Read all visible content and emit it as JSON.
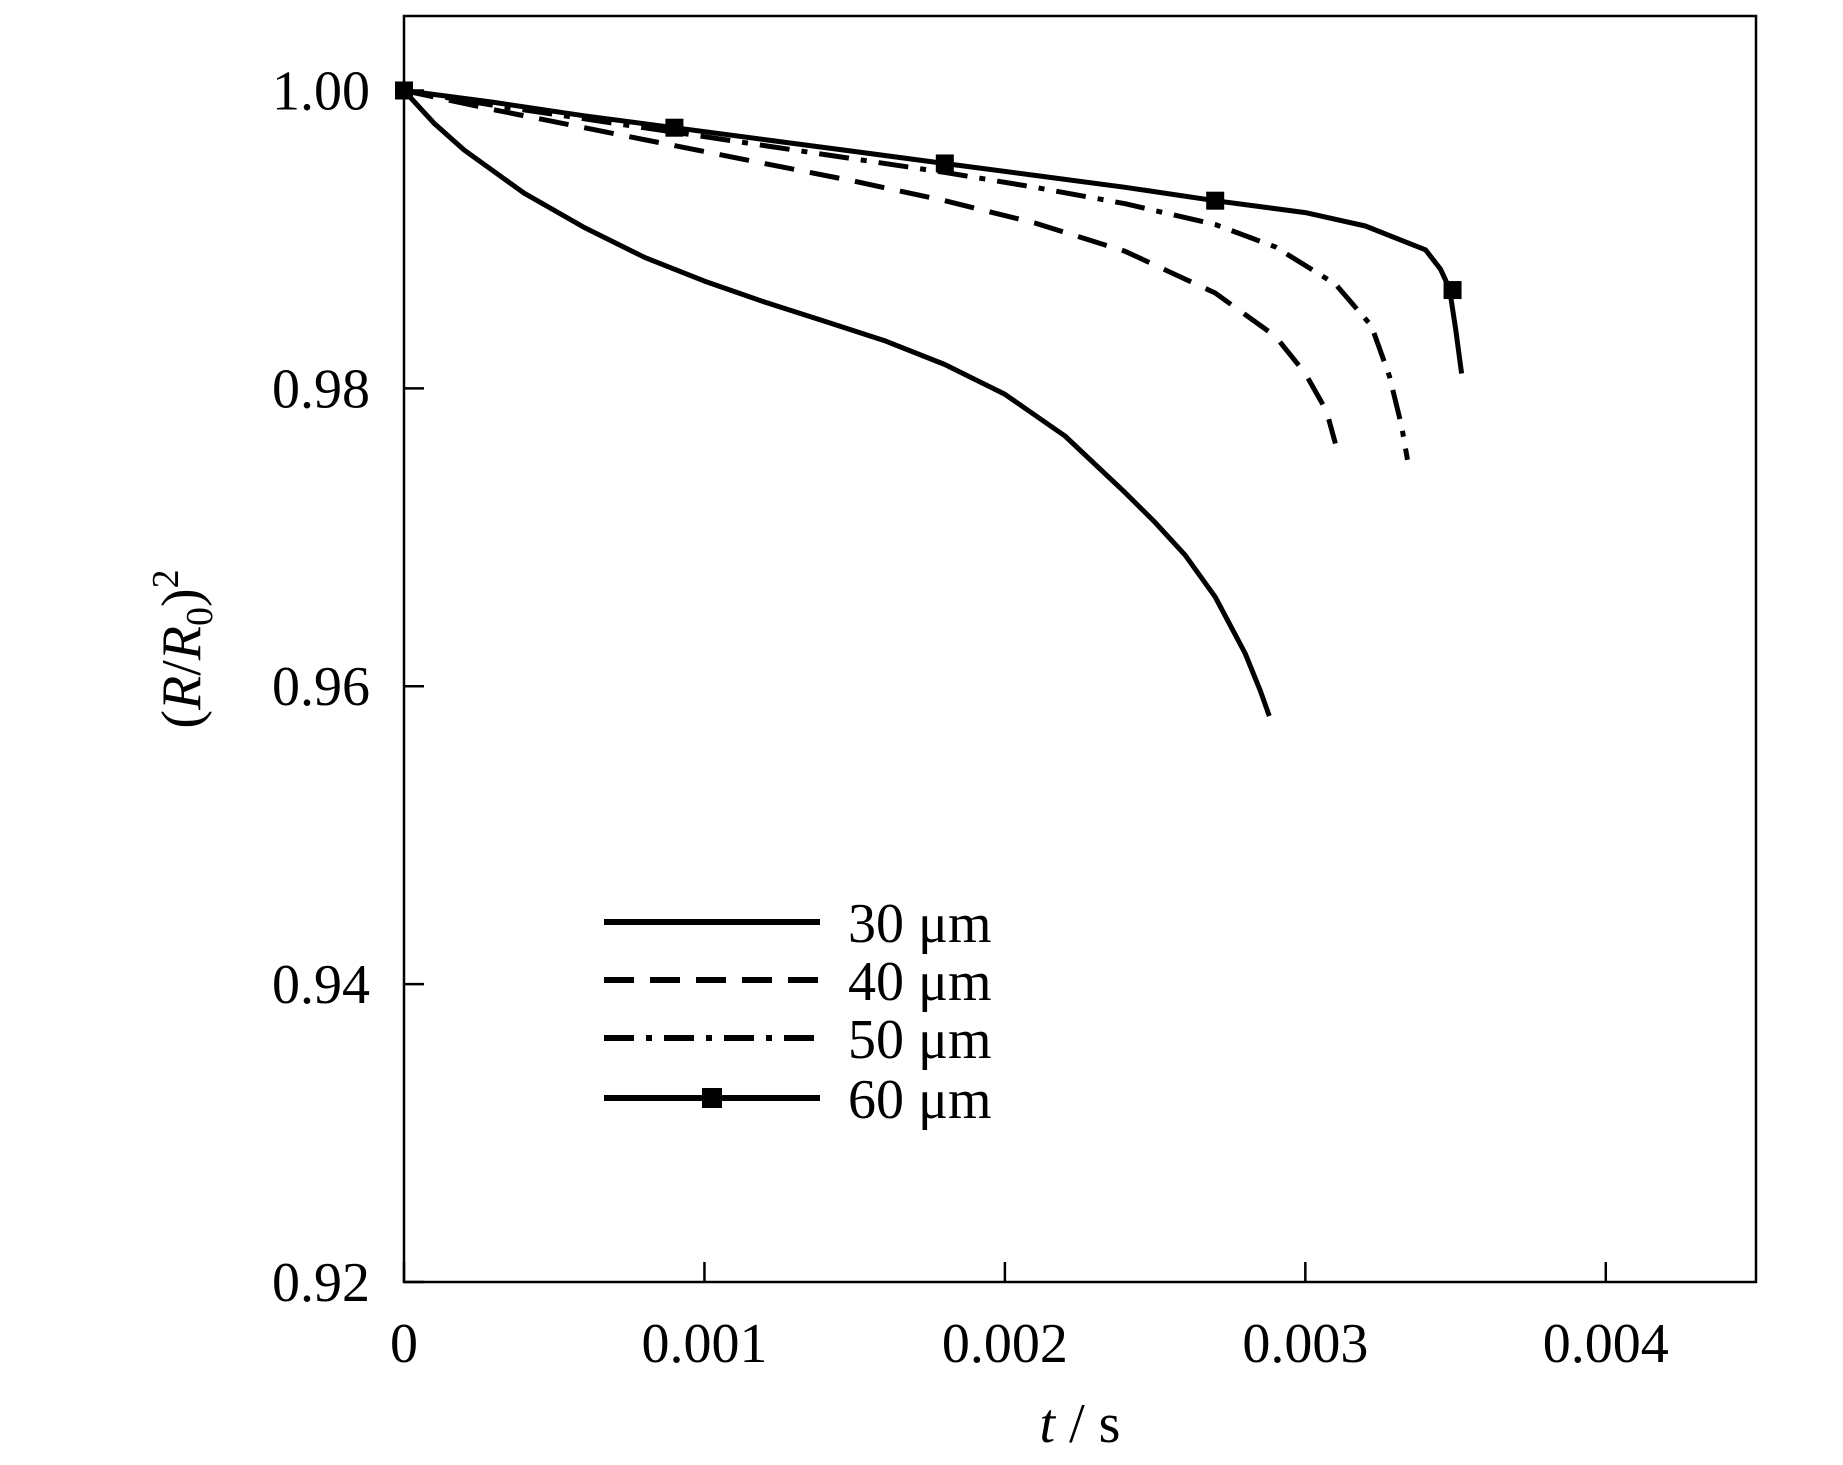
{
  "chart_data": {
    "type": "line",
    "xlabel": "t / s",
    "xlabel_parts": {
      "var": "t",
      "unit": " / s"
    },
    "ylabel": "(R/R0)^2",
    "ylabel_parts": {
      "open": "(",
      "r": "R",
      "slash": "/",
      "r0": "R",
      "sub": "0",
      "close": ")",
      "sup": "2"
    },
    "xlim": [
      0,
      0.0045
    ],
    "ylim": [
      0.92,
      1.005
    ],
    "xticks": [
      0,
      0.001,
      0.002,
      0.003,
      0.004
    ],
    "xtick_labels": [
      "0",
      "0.001",
      "0.002",
      "0.003",
      "0.004"
    ],
    "yticks": [
      0.92,
      0.94,
      0.96,
      0.98,
      1.0
    ],
    "ytick_labels": [
      "0.92",
      "0.94",
      "0.96",
      "0.98",
      "1.00"
    ],
    "grid": false,
    "legend_position": "lower-left",
    "series": [
      {
        "name": "30 μm",
        "style": "solid",
        "marker": "none",
        "color": "#000000",
        "points": [
          [
            0,
            1.0
          ],
          [
            0.0001,
            0.9978
          ],
          [
            0.0002,
            0.996
          ],
          [
            0.0004,
            0.9931
          ],
          [
            0.0006,
            0.9908
          ],
          [
            0.0008,
            0.9888
          ],
          [
            0.001,
            0.9872
          ],
          [
            0.0012,
            0.9858
          ],
          [
            0.0014,
            0.9845
          ],
          [
            0.0016,
            0.9832
          ],
          [
            0.0018,
            0.9816
          ],
          [
            0.002,
            0.9796
          ],
          [
            0.0022,
            0.9768
          ],
          [
            0.0024,
            0.973
          ],
          [
            0.0025,
            0.971
          ],
          [
            0.0026,
            0.9688
          ],
          [
            0.0027,
            0.966
          ],
          [
            0.0028,
            0.9622
          ],
          [
            0.00285,
            0.9597
          ],
          [
            0.00288,
            0.958
          ]
        ]
      },
      {
        "name": "40 μm",
        "style": "dashed",
        "marker": "none",
        "color": "#000000",
        "points": [
          [
            0,
            1.0
          ],
          [
            0.0003,
            0.9987
          ],
          [
            0.0006,
            0.9975
          ],
          [
            0.0009,
            0.9963
          ],
          [
            0.0012,
            0.9951
          ],
          [
            0.0015,
            0.9939
          ],
          [
            0.0018,
            0.9926
          ],
          [
            0.0021,
            0.9911
          ],
          [
            0.0024,
            0.9892
          ],
          [
            0.0027,
            0.9864
          ],
          [
            0.0029,
            0.9835
          ],
          [
            0.003,
            0.981
          ],
          [
            0.00307,
            0.9785
          ],
          [
            0.0031,
            0.9763
          ]
        ]
      },
      {
        "name": "50 μm",
        "style": "dashdot",
        "marker": "none",
        "color": "#000000",
        "points": [
          [
            0,
            1.0
          ],
          [
            0.0003,
            0.999
          ],
          [
            0.0006,
            0.9981
          ],
          [
            0.0009,
            0.9972
          ],
          [
            0.0012,
            0.9963
          ],
          [
            0.0015,
            0.9954
          ],
          [
            0.0018,
            0.9945
          ],
          [
            0.0021,
            0.9935
          ],
          [
            0.0024,
            0.9924
          ],
          [
            0.0027,
            0.991
          ],
          [
            0.0029,
            0.9895
          ],
          [
            0.0031,
            0.987
          ],
          [
            0.00322,
            0.9842
          ],
          [
            0.00328,
            0.9808
          ],
          [
            0.00332,
            0.9775
          ],
          [
            0.00334,
            0.9752
          ]
        ]
      },
      {
        "name": "60 μm",
        "style": "solid",
        "marker": "square",
        "color": "#000000",
        "points": [
          [
            0,
            1.0
          ],
          [
            0.0003,
            0.9992
          ],
          [
            0.0006,
            0.9983
          ],
          [
            0.0009,
            0.9975
          ],
          [
            0.0012,
            0.9967
          ],
          [
            0.0015,
            0.9959
          ],
          [
            0.0018,
            0.9951
          ],
          [
            0.0021,
            0.9943
          ],
          [
            0.0024,
            0.9935
          ],
          [
            0.0027,
            0.9926
          ],
          [
            0.003,
            0.9918
          ],
          [
            0.0032,
            0.9909
          ],
          [
            0.0034,
            0.9893
          ],
          [
            0.00345,
            0.988
          ],
          [
            0.00348,
            0.9867
          ],
          [
            0.0035,
            0.984
          ],
          [
            0.00352,
            0.981
          ]
        ],
        "marker_points": [
          [
            0,
            1.0
          ],
          [
            0.0009,
            0.9975
          ],
          [
            0.0018,
            0.9951
          ],
          [
            0.0027,
            0.9926
          ],
          [
            0.00349,
            0.9866
          ]
        ]
      }
    ]
  }
}
